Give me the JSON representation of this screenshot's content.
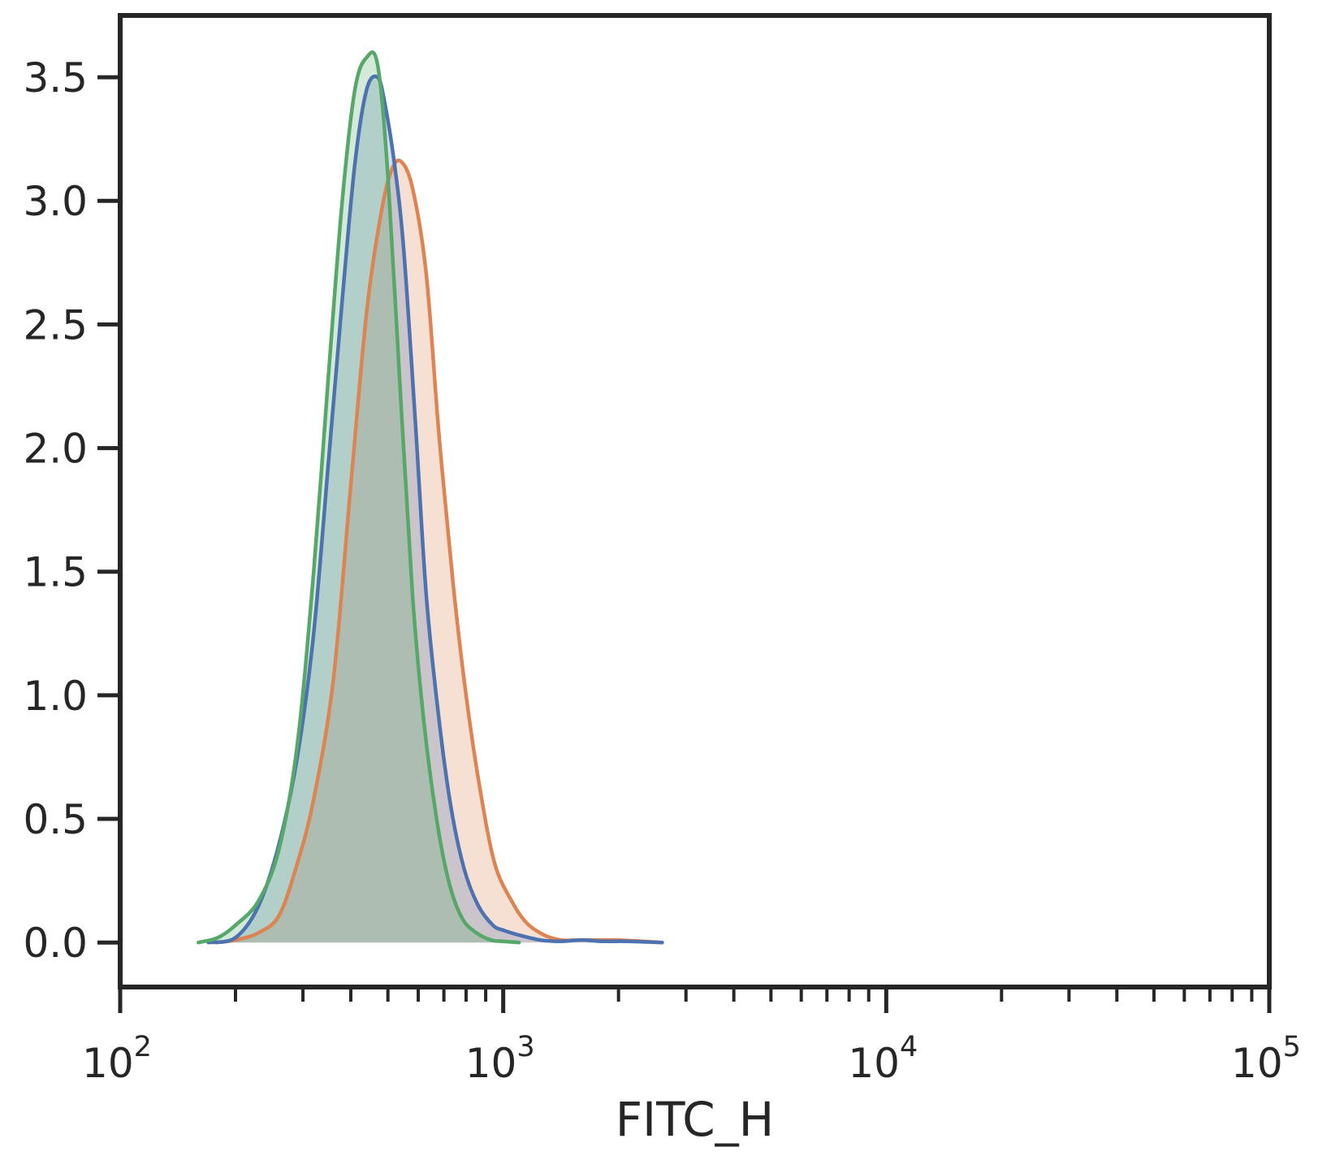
{
  "chart_data": {
    "type": "area",
    "xlabel": "FITC_H",
    "ylabel": "",
    "xscale": "log",
    "xlim": [
      100,
      100000
    ],
    "ylim": [
      -0.18,
      3.75
    ],
    "grid": false,
    "yticks": [
      0.0,
      0.5,
      1.0,
      1.5,
      2.0,
      2.5,
      3.0,
      3.5
    ],
    "ytick_labels": [
      "0.0",
      "0.5",
      "1.0",
      "1.5",
      "2.0",
      "2.5",
      "3.0",
      "3.5"
    ],
    "xticks": [
      100,
      1000,
      10000,
      100000
    ],
    "xtick_labels": [
      {
        "base": "10",
        "exp": "2"
      },
      {
        "base": "10",
        "exp": "3"
      },
      {
        "base": "10",
        "exp": "4"
      },
      {
        "base": "10",
        "exp": "5"
      }
    ],
    "series": [
      {
        "color": "#dd8452",
        "x": [
          178,
          200,
          230,
          260,
          290,
          320,
          360,
          400,
          440,
          480,
          510,
          540,
          580,
          630,
          680,
          740,
          800,
          870,
          950,
          1050,
          1150,
          1280,
          1420,
          1600,
          1800,
          2000,
          2300,
          2600
        ],
        "y": [
          0.0,
          0.01,
          0.04,
          0.11,
          0.32,
          0.58,
          1.06,
          1.85,
          2.55,
          2.95,
          3.12,
          3.16,
          3.05,
          2.7,
          2.05,
          1.45,
          1.0,
          0.62,
          0.32,
          0.17,
          0.08,
          0.03,
          0.01,
          0.01,
          0.01,
          0.01,
          0.005,
          0.0
        ]
      },
      {
        "color": "#4c72b0",
        "x": [
          170,
          200,
          230,
          260,
          290,
          320,
          350,
          380,
          410,
          440,
          470,
          490,
          520,
          550,
          590,
          630,
          680,
          730,
          790,
          860,
          940,
          1000,
          1100,
          1250,
          1400,
          1600,
          1800,
          2100,
          2600
        ],
        "y": [
          0.0,
          0.02,
          0.15,
          0.4,
          0.75,
          1.25,
          1.95,
          2.6,
          3.15,
          3.45,
          3.5,
          3.4,
          3.15,
          2.8,
          2.1,
          1.4,
          0.9,
          0.55,
          0.3,
          0.15,
          0.07,
          0.05,
          0.03,
          0.01,
          0.005,
          0.01,
          0.005,
          0.005,
          0.0
        ]
      },
      {
        "color": "#55a868",
        "x": [
          160,
          180,
          200,
          230,
          260,
          290,
          320,
          350,
          380,
          410,
          440,
          470,
          500,
          540,
          580,
          620,
          670,
          720,
          780,
          850,
          930,
          1000,
          1100
        ],
        "y": [
          0.0,
          0.02,
          0.07,
          0.17,
          0.38,
          0.8,
          1.5,
          2.3,
          3.0,
          3.45,
          3.58,
          3.55,
          3.1,
          2.2,
          1.4,
          0.9,
          0.5,
          0.25,
          0.1,
          0.04,
          0.01,
          0.005,
          0.0
        ]
      }
    ]
  }
}
